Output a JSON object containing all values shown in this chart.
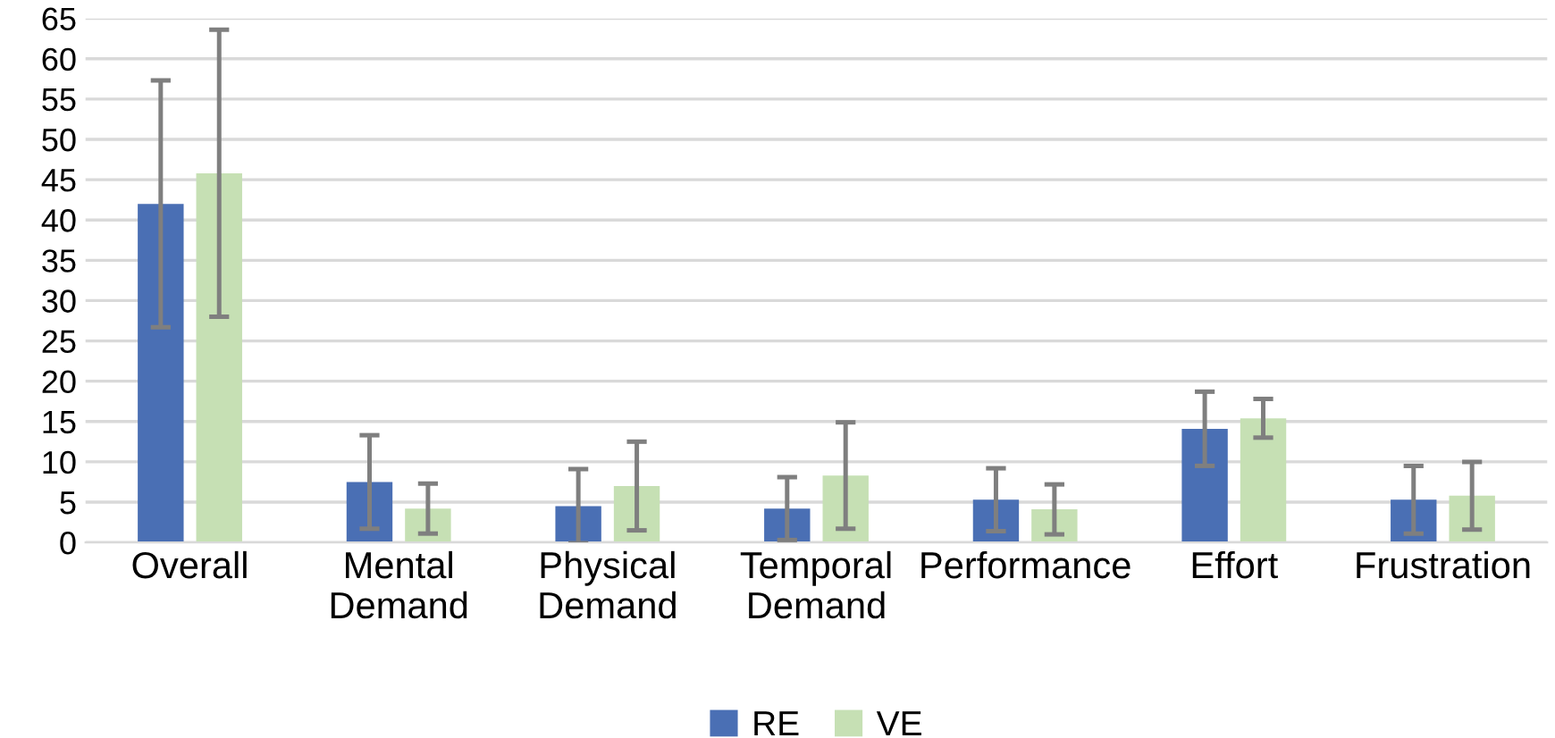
{
  "chart_data": {
    "type": "bar",
    "categories": [
      "Overall",
      "Mental\nDemand",
      "Physical\nDemand",
      "Temporal\nDemand",
      "Performance",
      "Effort",
      "Frustration"
    ],
    "series": [
      {
        "name": "RE",
        "color": "#4a6fb4",
        "values": [
          42,
          7.5,
          4.5,
          4.2,
          5.3,
          14.1,
          5.3
        ],
        "errors": [
          15.3,
          5.8,
          4.6,
          3.9,
          3.9,
          4.6,
          4.2
        ]
      },
      {
        "name": "VE",
        "color": "#c6e0b4",
        "values": [
          45.8,
          4.2,
          7.0,
          8.3,
          4.1,
          15.4,
          5.8
        ],
        "errors": [
          17.8,
          3.1,
          5.5,
          6.6,
          3.1,
          2.4,
          4.2
        ]
      }
    ],
    "ylim": [
      0,
      65
    ],
    "yticks": [
      0,
      5,
      10,
      15,
      20,
      25,
      30,
      35,
      40,
      45,
      50,
      55,
      60,
      65
    ],
    "grid": "y",
    "legend": "bottom"
  }
}
